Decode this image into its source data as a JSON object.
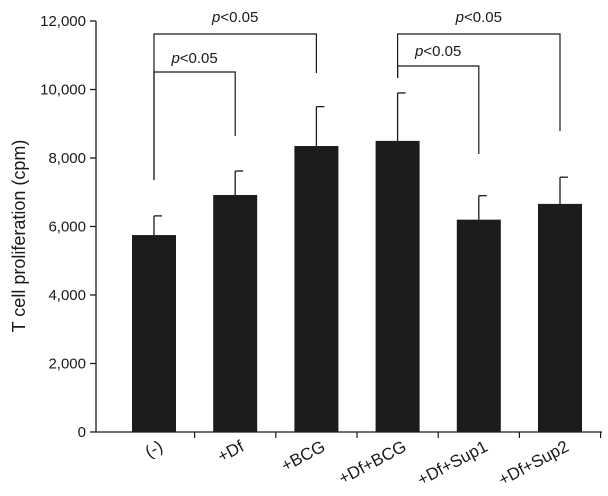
{
  "chart_data": {
    "type": "bar",
    "title": "",
    "xlabel": "",
    "ylabel": "T cell proliferation (cpm)",
    "ylim": [
      0,
      12000
    ],
    "yticks": [
      0,
      2000,
      4000,
      6000,
      8000,
      10000,
      12000
    ],
    "ytick_labels": [
      "0",
      "2,000",
      "4,000",
      "6,000",
      "8,000",
      "10,000",
      "12,000"
    ],
    "categories": [
      "(-)",
      "+Df",
      "+BCG",
      "+Df+BCG",
      "+Df+Sup1",
      "+Df+Sup2"
    ],
    "values": [
      5750,
      6920,
      8350,
      8500,
      6200,
      6660
    ],
    "errors": [
      560,
      700,
      1150,
      1400,
      700,
      780
    ],
    "bar_color": "#1c1c1c",
    "grid": false,
    "legend": "none",
    "comparisons": [
      {
        "from": 0,
        "to": 1,
        "p_symbol": "p",
        "p_rest": "<0.05"
      },
      {
        "from": 0,
        "to": 2,
        "p_symbol": "p",
        "p_rest": "<0.05"
      },
      {
        "from": 3,
        "to": 4,
        "p_symbol": "p",
        "p_rest": "<0.05"
      },
      {
        "from": 3,
        "to": 5,
        "p_symbol": "p",
        "p_rest": "<0.05"
      }
    ]
  }
}
